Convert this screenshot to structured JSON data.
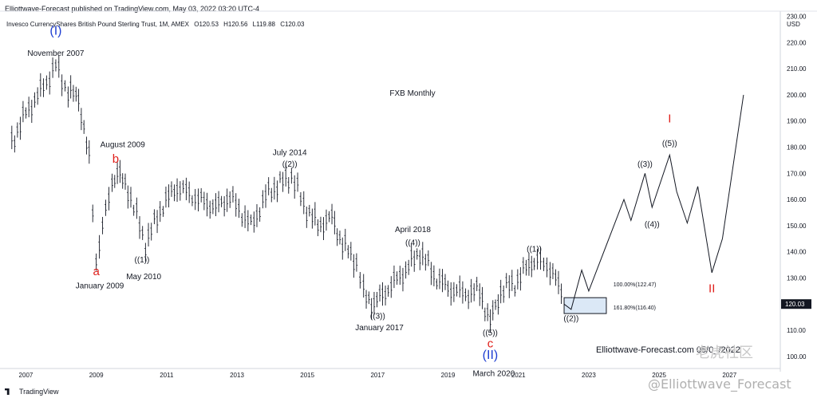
{
  "header": {
    "published": "Elliottwave-Forecast published on TradingView.com, May 03, 2022 03:20 UTC-4",
    "symbol": "Invesco CurrencyShares British Pound Sterling Trust, 1M, AMEX",
    "o": "O120.53",
    "h": "H120.56",
    "l": "L119.88",
    "c": "C120.03"
  },
  "footer": {
    "tradingview": "TradingView",
    "watermark": "@Elliottwave_Forecast",
    "cn_watermark": "老虎社区",
    "brand": "Elliottwave-Forecast.com",
    "brand_date": "05/0_/2022"
  },
  "chart_data": {
    "type": "line",
    "title": "FXB Monthly",
    "currency": "USD",
    "current_price": "120.03",
    "ylim": [
      96,
      232
    ],
    "xlim": [
      2006.4,
      2028.4
    ],
    "y_ticks": [
      "230.00",
      "220.00",
      "210.00",
      "200.00",
      "190.00",
      "180.00",
      "170.00",
      "160.00",
      "150.00",
      "140.00",
      "130.00",
      "120.00",
      "110.00",
      "100.00"
    ],
    "x_ticks": [
      "2007",
      "2009",
      "2011",
      "2013",
      "2015",
      "2017",
      "2019",
      "2021",
      "2023",
      "2025",
      "2027"
    ],
    "series": [
      {
        "values": [
          [
            2006.6,
            182
          ],
          [
            2007.0,
            193
          ],
          [
            2007.5,
            203
          ],
          [
            2007.85,
            211
          ],
          [
            2008.2,
            201
          ],
          [
            2008.5,
            199
          ],
          [
            2008.8,
            175
          ],
          [
            2009.0,
            137
          ],
          [
            2009.45,
            167
          ],
          [
            2009.6,
            170
          ],
          [
            2009.9,
            164
          ],
          [
            2010.4,
            143
          ],
          [
            2010.9,
            158
          ],
          [
            2011.3,
            165
          ],
          [
            2011.9,
            160
          ],
          [
            2012.4,
            157
          ],
          [
            2012.8,
            161
          ],
          [
            2013.4,
            150
          ],
          [
            2013.9,
            163
          ],
          [
            2014.55,
            169
          ],
          [
            2014.9,
            158
          ],
          [
            2015.3,
            150
          ],
          [
            2015.7,
            153
          ],
          [
            2016.0,
            143
          ],
          [
            2016.4,
            136
          ],
          [
            2016.6,
            124
          ],
          [
            2016.9,
            120
          ],
          [
            2017.3,
            126
          ],
          [
            2017.8,
            133
          ],
          [
            2018.2,
            140
          ],
          [
            2018.6,
            131
          ],
          [
            2019.0,
            126
          ],
          [
            2019.5,
            124
          ],
          [
            2019.9,
            125
          ],
          [
            2020.2,
            113
          ],
          [
            2020.5,
            125
          ],
          [
            2020.9,
            128
          ],
          [
            2021.3,
            135
          ],
          [
            2021.45,
            137
          ],
          [
            2021.9,
            134
          ],
          [
            2022.3,
            122
          ]
        ],
        "color": "#131722"
      },
      {
        "values": [
          [
            2022.3,
            120
          ],
          [
            2022.5,
            118
          ],
          [
            2022.8,
            133
          ],
          [
            2023.0,
            125
          ],
          [
            2023.6,
            146
          ],
          [
            2024.0,
            160
          ],
          [
            2024.2,
            152
          ],
          [
            2024.6,
            170
          ],
          [
            2024.8,
            157
          ],
          [
            2025.3,
            177
          ],
          [
            2025.5,
            163
          ],
          [
            2025.8,
            151
          ],
          [
            2026.1,
            165
          ],
          [
            2026.5,
            132
          ],
          [
            2026.8,
            145
          ],
          [
            2027.4,
            200
          ]
        ],
        "color": "#131722"
      }
    ],
    "annotations": [
      {
        "text": "(I)",
        "x": 2007.85,
        "y": 223,
        "color": "#1f3fd2",
        "size": 16
      },
      {
        "text": "November 2007",
        "x": 2007.85,
        "y": 215,
        "color": "#131722",
        "size": 10
      },
      {
        "text": "August 2009",
        "x": 2009.75,
        "y": 180,
        "color": "#131722",
        "size": 10
      },
      {
        "text": "b",
        "x": 2009.55,
        "y": 174,
        "color": "#e0201c",
        "size": 15
      },
      {
        "text": "July 2014",
        "x": 2014.5,
        "y": 177,
        "color": "#131722",
        "size": 10
      },
      {
        "text": "((2))",
        "x": 2014.5,
        "y": 172.5,
        "color": "#131722",
        "size": 10
      },
      {
        "text": "((1))",
        "x": 2010.3,
        "y": 136,
        "color": "#131722",
        "size": 10
      },
      {
        "text": "a",
        "x": 2009.0,
        "y": 131,
        "color": "#e0201c",
        "size": 15
      },
      {
        "text": "May 2010",
        "x": 2010.35,
        "y": 129.5,
        "color": "#131722",
        "size": 10
      },
      {
        "text": "January 2009",
        "x": 2009.1,
        "y": 126,
        "color": "#131722",
        "size": 10
      },
      {
        "text": "April 2018",
        "x": 2018.0,
        "y": 147.5,
        "color": "#131722",
        "size": 10
      },
      {
        "text": "((4))",
        "x": 2018.0,
        "y": 142.5,
        "color": "#131722",
        "size": 10
      },
      {
        "text": "((3))",
        "x": 2017.0,
        "y": 114.5,
        "color": "#131722",
        "size": 10
      },
      {
        "text": "January 2017",
        "x": 2017.05,
        "y": 110,
        "color": "#131722",
        "size": 10
      },
      {
        "text": "((5))",
        "x": 2020.2,
        "y": 108,
        "color": "#131722",
        "size": 10
      },
      {
        "text": "c",
        "x": 2020.2,
        "y": 103.5,
        "color": "#e0201c",
        "size": 15
      },
      {
        "text": "(II)",
        "x": 2020.2,
        "y": 99,
        "color": "#1f3fd2",
        "size": 16
      },
      {
        "text": "March 2020",
        "x": 2020.3,
        "y": 92.5,
        "color": "#131722",
        "size": 10
      },
      {
        "text": "((1))",
        "x": 2021.45,
        "y": 140,
        "color": "#131722",
        "size": 10
      },
      {
        "text": "((2))",
        "x": 2022.5,
        "y": 113.5,
        "color": "#131722",
        "size": 10
      },
      {
        "text": "100.00%(122.47)",
        "x": 2023.7,
        "y": 126.8,
        "color": "#131722",
        "size": 7
      },
      {
        "text": "161.80%(116.40)",
        "x": 2023.7,
        "y": 118.0,
        "color": "#131722",
        "size": 7
      },
      {
        "text": "((3))",
        "x": 2024.6,
        "y": 172.5,
        "color": "#131722",
        "size": 10
      },
      {
        "text": "((4))",
        "x": 2024.8,
        "y": 149.5,
        "color": "#131722",
        "size": 10
      },
      {
        "text": "((5))",
        "x": 2025.3,
        "y": 180.5,
        "color": "#131722",
        "size": 10
      },
      {
        "text": "I",
        "x": 2025.3,
        "y": 189.5,
        "color": "#e0201c",
        "size": 15
      },
      {
        "text": "II",
        "x": 2026.5,
        "y": 124.5,
        "color": "#e0201c",
        "size": 15
      }
    ],
    "target_box": {
      "y_top": 122.47,
      "y_bottom": 116.4,
      "x_start": 2022.3,
      "x_end": 2023.5,
      "fill": "#dbe8f6",
      "stroke": "#131722"
    }
  }
}
